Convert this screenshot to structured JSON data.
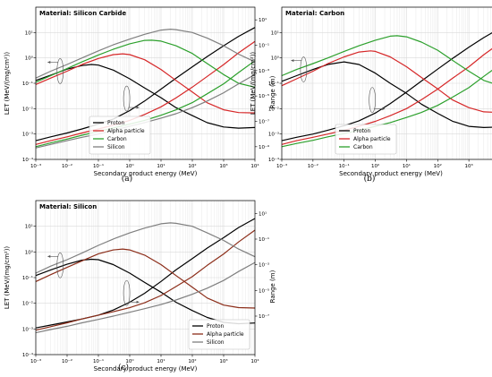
{
  "figure": {
    "captions": [
      "(a)",
      "(b)",
      "(c)"
    ]
  },
  "chart_data": [
    {
      "type": "line",
      "title": "Material: Silicon Carbide",
      "xlabel": "Secondary product energy (MeV)",
      "ylabel_left": "LET (MeV/(mg/cm²))",
      "ylabel_right": "Range (m)",
      "x_scale": "log",
      "y_scale": "log",
      "xlim": [
        0.001,
        10000
      ],
      "ylim_left": [
        0.0001,
        100
      ],
      "ylim_right": [
        1e-10,
        100
      ],
      "x_ticks": [
        "10⁻³",
        "10⁻²",
        "10⁻¹",
        "10⁰",
        "10¹",
        "10²",
        "10³",
        "10⁴"
      ],
      "y_ticks_left": [
        "10⁻⁴",
        "10⁻³",
        "10⁻²",
        "10⁻¹",
        "10⁰",
        "10¹"
      ],
      "y_ticks_right": [
        "10⁻⁹",
        "10⁻⁷",
        "10⁻⁵",
        "10⁻³",
        "10⁻¹",
        "10¹"
      ],
      "grid": true,
      "legend_position": "lower-left",
      "series": [
        {
          "name": "Proton",
          "color": "#000000",
          "let": {
            "x": [
              0.001,
              0.003,
              0.01,
              0.03,
              0.06,
              0.1,
              0.3,
              1,
              3,
              10,
              30,
              100,
              300,
              1000,
              3000,
              10000
            ],
            "y": [
              0.13,
              0.21,
              0.36,
              0.5,
              0.55,
              0.52,
              0.33,
              0.15,
              0.065,
              0.027,
              0.011,
              0.0053,
              0.0028,
              0.0019,
              0.0017,
              0.0018
            ]
          },
          "range": {
            "x": [
              0.001,
              0.003,
              0.01,
              0.03,
              0.1,
              0.3,
              1,
              3,
              10,
              30,
              100,
              300,
              1000,
              3000,
              10000
            ],
            "y": [
              3e-09,
              6e-09,
              1.2e-08,
              2.5e-08,
              6e-08,
              1.5e-07,
              7e-07,
              4e-06,
              3.5e-05,
              0.00025,
              0.002,
              0.013,
              0.09,
              0.5,
              2.5
            ]
          }
        },
        {
          "name": "Alpha particle",
          "color": "#d62728",
          "let": {
            "x": [
              0.001,
              0.003,
              0.01,
              0.03,
              0.1,
              0.3,
              0.6,
              1,
              3,
              10,
              30,
              100,
              300,
              1000,
              3000,
              10000
            ],
            "y": [
              0.09,
              0.16,
              0.3,
              0.55,
              0.95,
              1.35,
              1.45,
              1.35,
              0.85,
              0.35,
              0.13,
              0.045,
              0.017,
              0.009,
              0.007,
              0.0068
            ]
          },
          "range": {
            "x": [
              0.001,
              0.003,
              0.01,
              0.03,
              0.1,
              0.3,
              1,
              3,
              10,
              30,
              100,
              300,
              1000,
              3000,
              10000
            ],
            "y": [
              1.5e-09,
              3e-09,
              6e-09,
              1.2e-08,
              2.5e-08,
              5e-08,
              1.2e-07,
              3.5e-07,
              1.4e-06,
              7e-06,
              5e-05,
              0.00035,
              0.003,
              0.025,
              0.2
            ]
          }
        },
        {
          "name": "Carbon",
          "color": "#2ca02c",
          "let": {
            "x": [
              0.001,
              0.003,
              0.01,
              0.03,
              0.1,
              0.3,
              1,
              3,
              5,
              10,
              30,
              100,
              300,
              1000,
              3000,
              10000
            ],
            "y": [
              0.11,
              0.2,
              0.38,
              0.7,
              1.3,
              2.2,
              3.6,
              4.9,
              5.0,
              4.6,
              3.0,
              1.5,
              0.6,
              0.22,
              0.1,
              0.07
            ]
          },
          "range": {
            "x": [
              0.001,
              0.003,
              0.01,
              0.03,
              0.1,
              0.3,
              1,
              3,
              10,
              30,
              100,
              300,
              1000,
              3000,
              10000
            ],
            "y": [
              1e-09,
              2e-09,
              4e-09,
              8e-09,
              1.6e-08,
              3e-08,
              6e-08,
              1.2e-07,
              3e-07,
              8e-07,
              3e-06,
              1.5e-05,
              9e-05,
              0.0007,
              0.006
            ]
          }
        },
        {
          "name": "Silicon",
          "color": "#7f7f7f",
          "let": {
            "x": [
              0.001,
              0.003,
              0.01,
              0.03,
              0.1,
              0.3,
              1,
              3,
              10,
              20,
              30,
              100,
              300,
              1000,
              3000,
              10000
            ],
            "y": [
              0.16,
              0.3,
              0.55,
              1.0,
              1.9,
              3.3,
              5.5,
              8.5,
              12.5,
              13.5,
              13.0,
              10.0,
              6.0,
              3.0,
              1.4,
              0.7
            ]
          },
          "range": {
            "x": [
              0.001,
              0.003,
              0.01,
              0.03,
              0.1,
              0.3,
              1,
              3,
              10,
              30,
              100,
              300,
              1000,
              3000,
              10000
            ],
            "y": [
              8e-10,
              1.5e-09,
              3e-09,
              5.5e-09,
              1e-08,
              2e-08,
              4e-08,
              8e-08,
              1.8e-07,
              4e-07,
              1.2e-06,
              4e-06,
              1.8e-05,
              9e-05,
              0.0005
            ]
          }
        }
      ]
    },
    {
      "type": "line",
      "title": "Material: Carbon",
      "xlabel": "Secondary product energy (MeV)",
      "ylabel_left": "LET (MeV/(mg/cm²))",
      "ylabel_right": "Range (m)",
      "x_scale": "log",
      "y_scale": "log",
      "xlim": [
        0.001,
        10000
      ],
      "ylim_left": [
        0.0001,
        100
      ],
      "ylim_right": [
        1e-10,
        100
      ],
      "x_ticks": [
        "10⁻³",
        "10⁻²",
        "10⁻¹",
        "10⁰",
        "10¹",
        "10²",
        "10³",
        "10⁴"
      ],
      "y_ticks_left": [
        "10⁻⁴",
        "10⁻³",
        "10⁻²",
        "10⁻¹",
        "10⁰",
        "10¹"
      ],
      "y_ticks_right": [
        "10⁻⁹",
        "10⁻⁷",
        "10⁻⁵",
        "10⁻³",
        "10⁻¹",
        "10¹"
      ],
      "grid": true,
      "legend_position": "lower-left",
      "series": [
        {
          "name": "Proton",
          "color": "#000000",
          "let": {
            "x": [
              0.001,
              0.003,
              0.01,
              0.03,
              0.1,
              0.3,
              1,
              3,
              10,
              30,
              100,
              300,
              1000,
              3000,
              10000
            ],
            "y": [
              0.12,
              0.2,
              0.35,
              0.55,
              0.7,
              0.55,
              0.25,
              0.1,
              0.04,
              0.015,
              0.0065,
              0.0032,
              0.002,
              0.0018,
              0.0019
            ]
          },
          "range": {
            "x": [
              0.001,
              0.003,
              0.01,
              0.03,
              0.1,
              0.3,
              1,
              3,
              10,
              30,
              100,
              300,
              1000,
              3000,
              10000
            ],
            "y": [
              3e-09,
              5.5e-09,
              1e-08,
              2e-08,
              4.5e-08,
              1.1e-07,
              4.5e-07,
              2.5e-06,
              2e-05,
              0.00015,
              0.0013,
              0.009,
              0.07,
              0.4,
              2.2
            ]
          }
        },
        {
          "name": "Alpha particle",
          "color": "#d62728",
          "let": {
            "x": [
              0.001,
              0.003,
              0.01,
              0.03,
              0.1,
              0.3,
              0.7,
              1,
              3,
              10,
              30,
              100,
              300,
              1000,
              3000,
              10000
            ],
            "y": [
              0.08,
              0.15,
              0.3,
              0.6,
              1.1,
              1.7,
              1.9,
              1.8,
              1.1,
              0.45,
              0.17,
              0.06,
              0.022,
              0.011,
              0.0075,
              0.007
            ]
          },
          "range": {
            "x": [
              0.001,
              0.003,
              0.01,
              0.03,
              0.1,
              0.3,
              1,
              3,
              10,
              30,
              100,
              300,
              1000,
              3000,
              10000
            ],
            "y": [
              1.5e-09,
              3e-09,
              5.5e-09,
              1e-08,
              2e-08,
              4e-08,
              1e-07,
              2.8e-07,
              1e-06,
              5e-06,
              3.5e-05,
              0.00025,
              0.002,
              0.018,
              0.15
            ]
          }
        },
        {
          "name": "Carbon",
          "color": "#2ca02c",
          "let": {
            "x": [
              0.001,
              0.003,
              0.01,
              0.03,
              0.1,
              0.3,
              1,
              3,
              5,
              10,
              30,
              100,
              300,
              1000,
              3000,
              10000
            ],
            "y": [
              0.2,
              0.35,
              0.6,
              1.0,
              1.8,
              3.0,
              5.0,
              7.2,
              7.5,
              6.8,
              4.2,
              2.0,
              0.8,
              0.3,
              0.13,
              0.08
            ]
          },
          "range": {
            "x": [
              0.001,
              0.003,
              0.01,
              0.03,
              0.1,
              0.3,
              1,
              3,
              10,
              30,
              100,
              300,
              1000,
              3000,
              10000
            ],
            "y": [
              1e-09,
              1.8e-09,
              3.2e-09,
              6e-09,
              1.1e-08,
              2e-08,
              4e-08,
              8e-08,
              2e-07,
              5e-07,
              1.8e-06,
              8e-06,
              4.5e-05,
              0.00035,
              0.003
            ]
          }
        }
      ]
    },
    {
      "type": "line",
      "title": "Material: Silicon",
      "xlabel": "Secondary product energy (MeV)",
      "ylabel_left": "LET (MeV/(mg/cm²))",
      "ylabel_right": "Range (m)",
      "x_scale": "log",
      "y_scale": "log",
      "xlim": [
        0.001,
        10000
      ],
      "ylim_left": [
        0.0001,
        100
      ],
      "ylim_right": [
        1e-10,
        100
      ],
      "x_ticks": [
        "10⁻³",
        "10⁻²",
        "10⁻¹",
        "10⁰",
        "10¹",
        "10²",
        "10³",
        "10⁴"
      ],
      "y_ticks_left": [
        "10⁻⁴",
        "10⁻³",
        "10⁻²",
        "10⁻¹",
        "10⁰",
        "10¹"
      ],
      "y_ticks_right": [
        "10⁻⁷",
        "10⁻⁵",
        "10⁻³",
        "10⁻¹",
        "10¹"
      ],
      "grid": true,
      "legend_position": "lower-right",
      "series": [
        {
          "name": "Proton",
          "color": "#000000",
          "let": {
            "x": [
              0.001,
              0.003,
              0.01,
              0.03,
              0.06,
              0.1,
              0.3,
              1,
              3,
              10,
              30,
              100,
              300,
              1000,
              3000,
              10000
            ],
            "y": [
              0.12,
              0.2,
              0.33,
              0.48,
              0.52,
              0.5,
              0.32,
              0.15,
              0.065,
              0.027,
              0.011,
              0.0052,
              0.0028,
              0.0018,
              0.0016,
              0.0017
            ]
          },
          "range": {
            "x": [
              0.001,
              0.003,
              0.01,
              0.03,
              0.1,
              0.3,
              1,
              3,
              10,
              30,
              100,
              300,
              1000,
              3000,
              10000
            ],
            "y": [
              1.2e-08,
              2e-08,
              3.5e-08,
              6e-08,
              1.2e-07,
              3e-07,
              1.2e-06,
              6e-06,
              5e-05,
              0.0004,
              0.003,
              0.02,
              0.13,
              0.8,
              4
            ]
          }
        },
        {
          "name": "Alpha particle",
          "color": "#8c2d19",
          "let": {
            "x": [
              0.001,
              0.003,
              0.01,
              0.03,
              0.1,
              0.3,
              0.6,
              1,
              3,
              10,
              30,
              100,
              300,
              1000,
              3000,
              10000
            ],
            "y": [
              0.07,
              0.13,
              0.25,
              0.45,
              0.85,
              1.2,
              1.3,
              1.2,
              0.75,
              0.32,
              0.12,
              0.042,
              0.016,
              0.0085,
              0.0068,
              0.0065
            ]
          },
          "range": {
            "x": [
              0.001,
              0.003,
              0.01,
              0.03,
              0.1,
              0.3,
              1,
              3,
              10,
              30,
              100,
              300,
              1000,
              3000,
              10000
            ],
            "y": [
              8e-09,
              1.5e-08,
              3e-08,
              6e-08,
              1.2e-07,
              2.2e-07,
              4.5e-07,
              1.1e-06,
              4e-06,
              2e-05,
              0.00012,
              0.0009,
              0.007,
              0.06,
              0.5
            ]
          }
        },
        {
          "name": "Silicon",
          "color": "#7f7f7f",
          "let": {
            "x": [
              0.001,
              0.003,
              0.01,
              0.03,
              0.1,
              0.3,
              1,
              3,
              10,
              20,
              30,
              100,
              300,
              1000,
              3000,
              10000
            ],
            "y": [
              0.15,
              0.28,
              0.5,
              0.9,
              1.8,
              3.2,
              5.5,
              8.5,
              12.5,
              13.5,
              13.0,
              10.0,
              5.5,
              2.8,
              1.3,
              0.65
            ]
          },
          "range": {
            "x": [
              0.001,
              0.003,
              0.01,
              0.03,
              0.1,
              0.3,
              1,
              3,
              10,
              30,
              100,
              300,
              1000,
              3000,
              10000
            ],
            "y": [
              5e-09,
              9e-09,
              1.6e-08,
              3e-08,
              5.5e-08,
              1e-07,
              2e-07,
              3.8e-07,
              8e-07,
              1.8e-06,
              5e-06,
              1.5e-05,
              6e-05,
              0.0003,
              0.0015
            ]
          }
        }
      ]
    }
  ]
}
